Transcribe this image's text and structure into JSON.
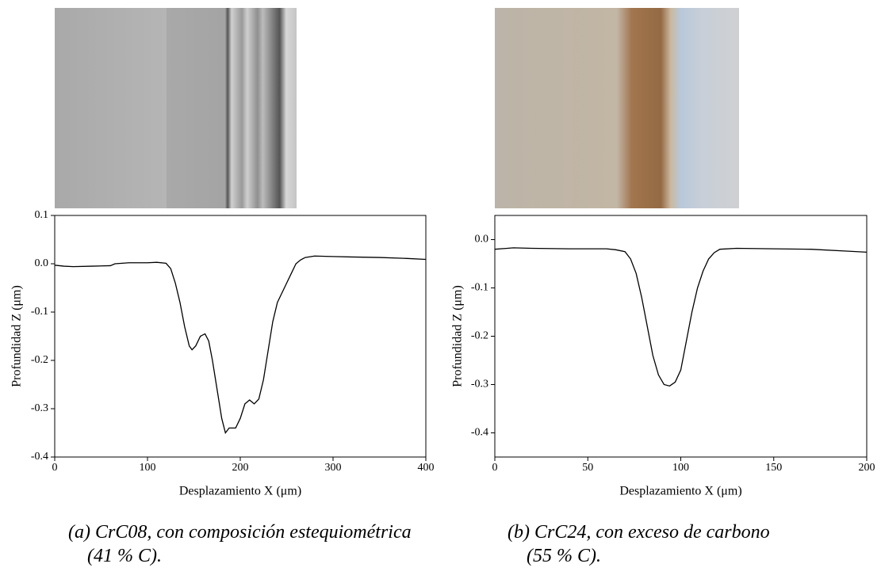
{
  "chart_data": [
    {
      "type": "line",
      "xlabel": "Desplazamiento X (μm)",
      "ylabel": "Profundidad Z (μm)",
      "caption": [
        "(a) CrC08, con composición estequiométrica",
        "(41 % C)."
      ],
      "xlim": [
        0,
        400
      ],
      "ylim": [
        -0.4,
        0.1
      ],
      "xticks": [
        0,
        100,
        200,
        300,
        400
      ],
      "yticks": [
        0.1,
        {
          "value": 0,
          "label": "0.0"
        },
        -0.1,
        -0.2,
        -0.3,
        -0.4
      ],
      "color": "#000000",
      "x": [
        0,
        10,
        20,
        40,
        60,
        65,
        80,
        100,
        110,
        120,
        125,
        130,
        135,
        140,
        145,
        148,
        152,
        157,
        162,
        166,
        170,
        175,
        180,
        184,
        188,
        195,
        200,
        205,
        210,
        215,
        220,
        225,
        230,
        235,
        240,
        245,
        250,
        255,
        260,
        265,
        270,
        280,
        300,
        320,
        350,
        380,
        400
      ],
      "values": [
        -0.003,
        -0.005,
        -0.006,
        -0.005,
        -0.004,
        0.0,
        0.002,
        0.002,
        0.003,
        0.001,
        -0.01,
        -0.04,
        -0.08,
        -0.13,
        -0.17,
        -0.178,
        -0.17,
        -0.15,
        -0.145,
        -0.16,
        -0.2,
        -0.26,
        -0.32,
        -0.35,
        -0.34,
        -0.34,
        -0.32,
        -0.29,
        -0.282,
        -0.29,
        -0.28,
        -0.24,
        -0.18,
        -0.12,
        -0.08,
        -0.06,
        -0.04,
        -0.02,
        0.0,
        0.008,
        0.013,
        0.016,
        0.015,
        0.014,
        0.013,
        0.011,
        0.009
      ]
    },
    {
      "type": "line",
      "xlabel": "Desplazamiento X (μm)",
      "ylabel": "Profundidad Z (μm)",
      "caption": [
        "(b) CrC24, con exceso de carbono",
        "(55 % C)."
      ],
      "xlim": [
        0,
        200
      ],
      "ylim": [
        -0.45,
        0.05
      ],
      "xticks": [
        0,
        50,
        100,
        150,
        200
      ],
      "yticks": [
        {
          "value": 0,
          "label": "0.0"
        },
        -0.1,
        -0.2,
        -0.3,
        -0.4
      ],
      "color": "#000000",
      "x": [
        0,
        10,
        20,
        40,
        60,
        65,
        70,
        73,
        76,
        79,
        82,
        85,
        88,
        91,
        94,
        97,
        100,
        103,
        106,
        109,
        112,
        115,
        118,
        121,
        130,
        150,
        170,
        190,
        200
      ],
      "values": [
        -0.02,
        -0.017,
        -0.018,
        -0.019,
        -0.019,
        -0.021,
        -0.025,
        -0.04,
        -0.07,
        -0.12,
        -0.18,
        -0.24,
        -0.28,
        -0.3,
        -0.303,
        -0.295,
        -0.27,
        -0.21,
        -0.15,
        -0.1,
        -0.065,
        -0.04,
        -0.027,
        -0.02,
        -0.018,
        -0.019,
        -0.02,
        -0.024,
        -0.026
      ]
    }
  ]
}
